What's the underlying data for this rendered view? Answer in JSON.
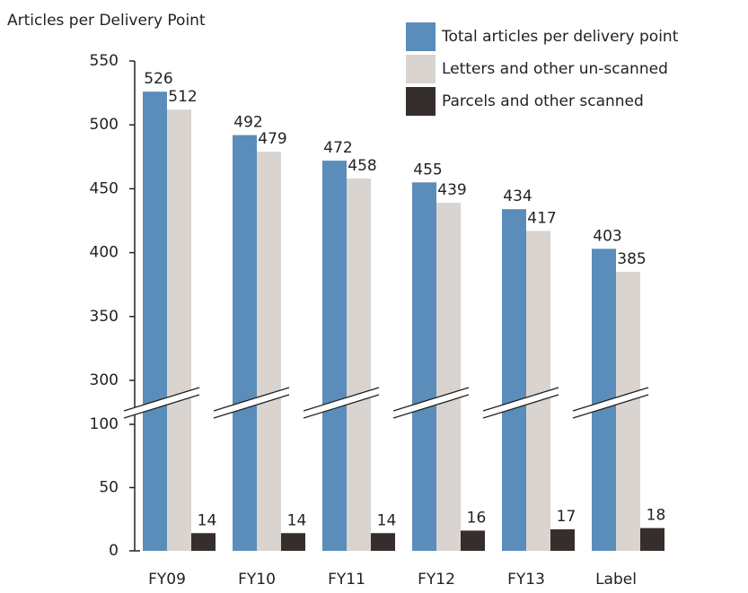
{
  "chart_data": {
    "type": "bar",
    "title": "Articles per Delivery Point",
    "categories": [
      "FY09",
      "FY10",
      "FY11",
      "FY12",
      "FY13",
      "Label"
    ],
    "series": [
      {
        "name": "Total articles per delivery point",
        "color": "#5a8dba",
        "values": [
          526,
          492,
          472,
          455,
          434,
          403
        ]
      },
      {
        "name": "Letters and other un-scanned",
        "color": "#d9d4cf",
        "values": [
          512,
          479,
          458,
          439,
          417,
          385
        ]
      },
      {
        "name": "Parcels and other scanned",
        "color": "#352e2c",
        "values": [
          14,
          14,
          14,
          16,
          17,
          18
        ]
      }
    ],
    "ylim": [
      0,
      550
    ],
    "yticks": [
      0,
      50,
      100,
      300,
      350,
      400,
      450,
      500,
      550
    ],
    "axis_break": true,
    "legend": "top-right",
    "grid": false
  }
}
